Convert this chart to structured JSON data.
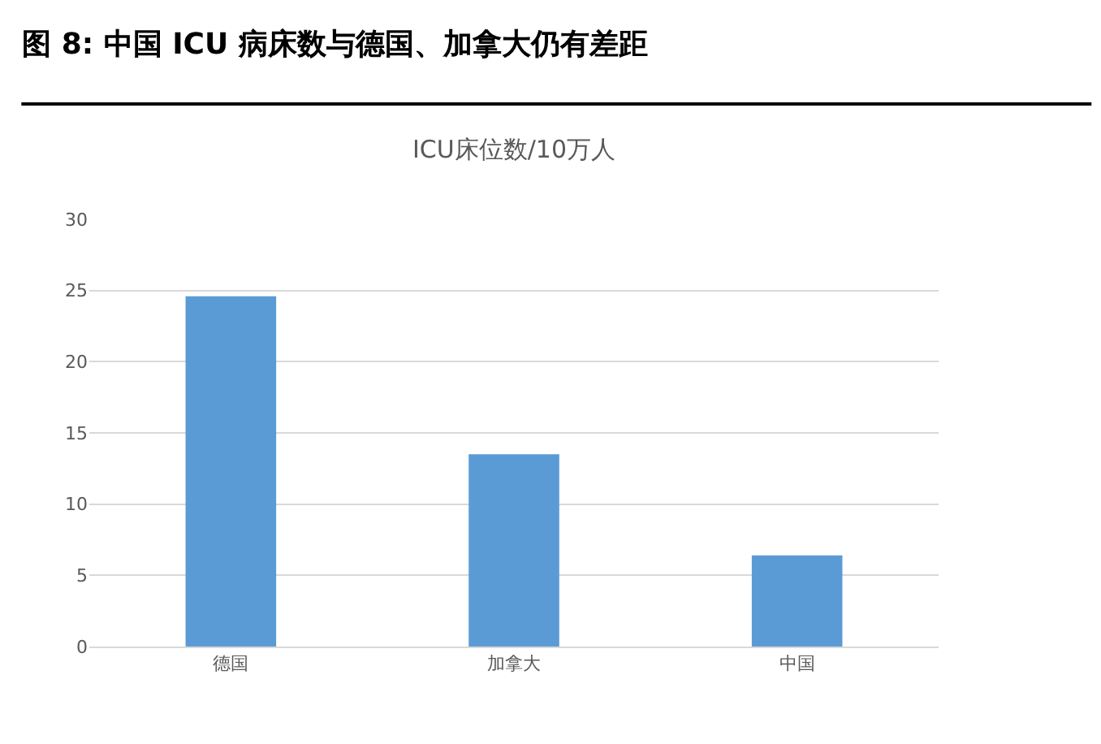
{
  "chart_data": {
    "type": "bar",
    "title": "图 8: 中国 ICU 病床数与德国、加拿大仍有差距",
    "subtitle": "ICU床位数/10万人",
    "categories": [
      "德国",
      "加拿大",
      "中国"
    ],
    "values": [
      24.6,
      13.5,
      6.4
    ],
    "color": "#5b9bd5",
    "ylim": [
      0,
      30
    ],
    "yticks": [
      0,
      5,
      10,
      15,
      20,
      25,
      30
    ],
    "grid": "y"
  }
}
